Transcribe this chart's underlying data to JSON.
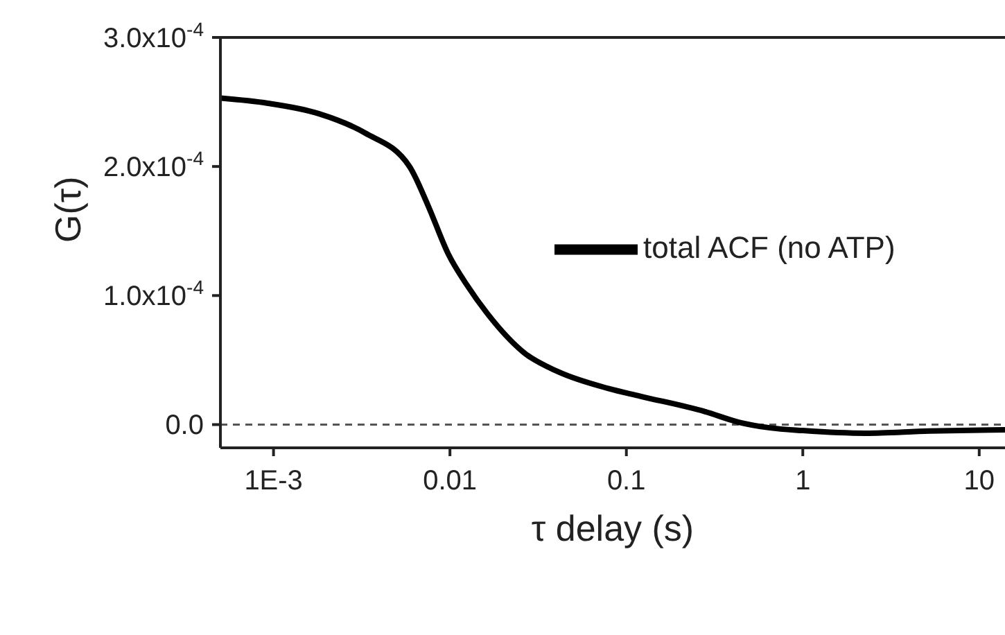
{
  "chart_data": {
    "type": "line",
    "xlabel": "τ delay (s)",
    "ylabel": "G(τ)",
    "log": "x",
    "legend": "right",
    "xlim": [
      0.0005,
      14
    ],
    "xticks": [
      {
        "value": 0.001,
        "label": "1E-3"
      },
      0.01,
      0.1,
      1,
      10
    ],
    "ylim": [
      -1.8e-05,
      0.0003
    ],
    "yticks": [
      {
        "value": 0,
        "label": "0.0"
      },
      {
        "value": 0.0001,
        "label": "1.0x10$^{-4}$"
      },
      {
        "value": 0.0002,
        "label": "2.0x10$^{-4}$"
      },
      {
        "value": 0.0003,
        "label": "3.0x10$^{-4}$"
      }
    ],
    "ref_lines": [
      {
        "axis": "y",
        "value": 0,
        "color": "#555555",
        "line_style": "dashed"
      }
    ],
    "x": [
      0.0005,
      0.00093,
      0.0018,
      0.0033,
      0.0059,
      0.0075,
      0.0098,
      0.0125,
      0.0163,
      0.0267,
      0.041,
      0.079,
      0.12,
      0.28,
      0.43,
      0.65,
      1,
      2.26,
      5.2,
      14
    ],
    "series": [
      {
        "name": "total ACF (no ATP)",
        "color": "#000000",
        "values": [
          0.000253,
          0.000249,
          0.000241,
          0.000226,
          0.0002,
          0.00017,
          0.000132,
          0.000108,
          8.6e-05,
          5.5e-05,
          4.1e-05,
          2.8e-05,
          2.2e-05,
          1e-05,
          2e-06,
          -2.5e-06,
          -4.6e-06,
          -6.7e-06,
          -5e-06,
          -4e-06
        ]
      }
    ]
  }
}
